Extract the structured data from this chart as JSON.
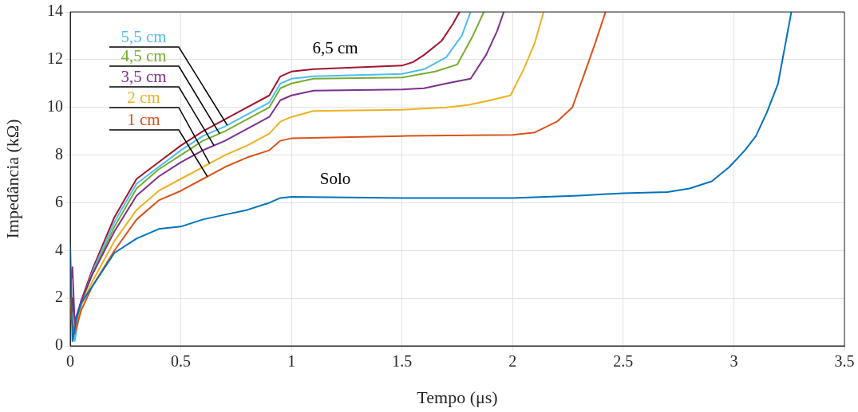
{
  "chart_data": {
    "type": "line",
    "xlabel": "Tempo (μs)",
    "ylabel": "Impedância (kΩ)",
    "xlim": [
      0,
      3.5
    ],
    "xticks": [
      0,
      0.5,
      1,
      1.5,
      2,
      2.5,
      3,
      3.5
    ],
    "ylim": [
      0,
      14
    ],
    "yticks": [
      0,
      2,
      4,
      6,
      8,
      10,
      12,
      14
    ],
    "grid": true,
    "legend": false,
    "marker": "none",
    "line_style": "solid",
    "series": [
      {
        "name": "Solo",
        "color": "#0072bd",
        "x": [
          0,
          0.01,
          0.03,
          0.05,
          0.1,
          0.15,
          0.2,
          0.3,
          0.4,
          0.5,
          0.6,
          0.7,
          0.8,
          0.9,
          0.95,
          1.0,
          1.5,
          2.0,
          2.3,
          2.5,
          2.7,
          2.8,
          2.9,
          2.98,
          3.05,
          3.1,
          3.15,
          3.2,
          3.26
        ],
        "values": [
          4.2,
          0.2,
          1.2,
          1.8,
          2.5,
          3.2,
          3.9,
          4.5,
          4.9,
          5.0,
          5.3,
          5.5,
          5.7,
          6.0,
          6.2,
          6.25,
          6.2,
          6.2,
          6.3,
          6.4,
          6.45,
          6.6,
          6.9,
          7.5,
          8.2,
          8.8,
          9.8,
          11,
          14
        ]
      },
      {
        "name": "1 cm",
        "color": "#d95319",
        "x": [
          0,
          0.02,
          0.05,
          0.1,
          0.2,
          0.3,
          0.4,
          0.5,
          0.6,
          0.7,
          0.8,
          0.9,
          0.95,
          1.0,
          1.5,
          2.0,
          2.1,
          2.2,
          2.27,
          2.32,
          2.37,
          2.42
        ],
        "values": [
          1.5,
          0.5,
          1.5,
          2.5,
          4.0,
          5.3,
          6.1,
          6.5,
          7.0,
          7.5,
          7.9,
          8.2,
          8.6,
          8.7,
          8.8,
          8.85,
          8.95,
          9.4,
          10.0,
          11.3,
          12.6,
          14
        ]
      },
      {
        "name": "2 cm",
        "color": "#edb120",
        "x": [
          0,
          0.02,
          0.05,
          0.1,
          0.2,
          0.3,
          0.4,
          0.5,
          0.6,
          0.7,
          0.8,
          0.9,
          0.95,
          1.0,
          1.1,
          1.5,
          1.7,
          1.8,
          1.9,
          1.99,
          2.05,
          2.1,
          2.14
        ],
        "values": [
          2.0,
          0.6,
          1.7,
          2.7,
          4.4,
          5.7,
          6.5,
          7.0,
          7.5,
          8.0,
          8.4,
          8.9,
          9.4,
          9.6,
          9.85,
          9.9,
          10.0,
          10.1,
          10.3,
          10.5,
          11.6,
          12.7,
          14
        ]
      },
      {
        "name": "3,5 cm",
        "color": "#7e2f8e",
        "x": [
          0,
          0.01,
          0.02,
          0.05,
          0.1,
          0.2,
          0.3,
          0.4,
          0.5,
          0.6,
          0.7,
          0.8,
          0.9,
          0.95,
          1.0,
          1.1,
          1.5,
          1.6,
          1.7,
          1.81,
          1.88,
          1.93,
          1.96
        ],
        "values": [
          2.5,
          3.3,
          1.0,
          1.9,
          3.0,
          4.8,
          6.3,
          7.1,
          7.7,
          8.2,
          8.6,
          9.1,
          9.6,
          10.3,
          10.5,
          10.7,
          10.75,
          10.8,
          11.0,
          11.2,
          12.2,
          13.2,
          14
        ]
      },
      {
        "name": "4,5 cm",
        "color": "#77ac30",
        "x": [
          0,
          0.02,
          0.05,
          0.1,
          0.2,
          0.3,
          0.4,
          0.5,
          0.6,
          0.7,
          0.8,
          0.9,
          0.95,
          1.0,
          1.1,
          1.5,
          1.65,
          1.75,
          1.82,
          1.87
        ],
        "values": [
          1.8,
          0.5,
          1.8,
          3.0,
          5.0,
          6.6,
          7.4,
          8.0,
          8.6,
          9.0,
          9.5,
          10.0,
          10.8,
          11.0,
          11.2,
          11.25,
          11.5,
          11.8,
          13.0,
          14
        ]
      },
      {
        "name": "5,5 cm",
        "color": "#4dbeee",
        "x": [
          0,
          0.02,
          0.05,
          0.1,
          0.2,
          0.3,
          0.4,
          0.5,
          0.6,
          0.7,
          0.8,
          0.9,
          0.95,
          1.0,
          1.1,
          1.5,
          1.6,
          1.7,
          1.77,
          1.81
        ],
        "values": [
          1.5,
          0.2,
          1.8,
          3.1,
          5.2,
          6.8,
          7.5,
          8.2,
          8.8,
          9.2,
          9.7,
          10.2,
          11.0,
          11.2,
          11.3,
          11.4,
          11.6,
          12.1,
          13.0,
          14
        ]
      },
      {
        "name": "6,5 cm",
        "color": "#a2142f",
        "x": [
          0,
          0.01,
          0.02,
          0.05,
          0.1,
          0.2,
          0.3,
          0.4,
          0.5,
          0.6,
          0.7,
          0.8,
          0.9,
          0.95,
          1.0,
          1.1,
          1.5,
          1.55,
          1.6,
          1.68,
          1.73,
          1.76
        ],
        "values": [
          1.2,
          2.0,
          0.8,
          1.9,
          3.2,
          5.4,
          7.0,
          7.7,
          8.4,
          9.0,
          9.5,
          10.0,
          10.5,
          11.3,
          11.5,
          11.6,
          11.75,
          11.9,
          12.2,
          12.8,
          13.5,
          14
        ]
      }
    ]
  }
}
